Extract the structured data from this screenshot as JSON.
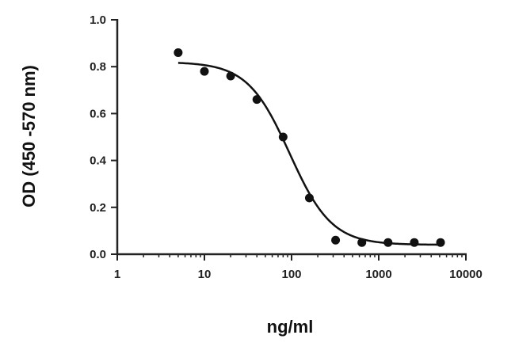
{
  "chart_data": {
    "type": "scatter",
    "title": "",
    "xlabel": "ng/ml",
    "ylabel": "OD (450 -570 nm)",
    "x_scale": "log",
    "xlim": [
      1,
      10000
    ],
    "ylim": [
      0.0,
      1.0
    ],
    "x_ticks": [
      1,
      10,
      100,
      1000,
      10000
    ],
    "x_tick_labels": [
      "1",
      "10",
      "100",
      "1000",
      "10000"
    ],
    "y_ticks": [
      0.0,
      0.2,
      0.4,
      0.6,
      0.8,
      1.0
    ],
    "y_tick_labels": [
      "0.0",
      "0.2",
      "0.4",
      "0.6",
      "0.8",
      "1.0"
    ],
    "grid": false,
    "legend": "none",
    "series": [
      {
        "x": [
          5,
          10,
          20,
          40,
          80,
          160,
          320,
          640,
          1280,
          2560,
          5120
        ],
        "y": [
          0.86,
          0.78,
          0.76,
          0.66,
          0.5,
          0.24,
          0.06,
          0.05,
          0.05,
          0.05,
          0.05
        ]
      }
    ],
    "fit_curve": {
      "model": "four-parameter logistic",
      "top": 0.82,
      "bottom": 0.04,
      "ec50": 95,
      "hill_slope": 1.8
    },
    "colors": {
      "points": "#111111",
      "curve": "#111111",
      "axis": "#222222"
    }
  }
}
